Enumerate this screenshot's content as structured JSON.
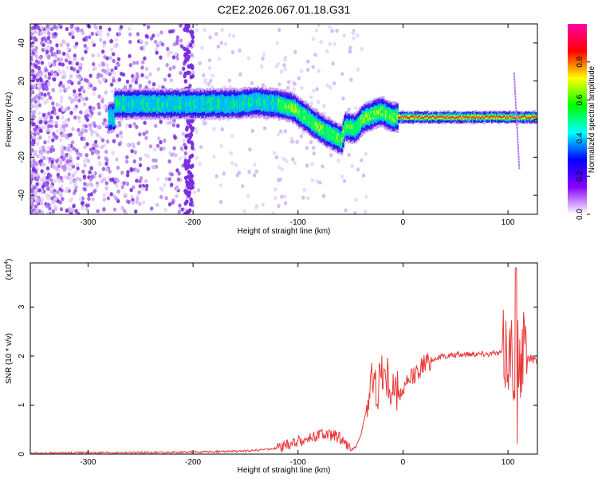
{
  "title": "C2E2.2026.067.01.18.G31",
  "colors": {
    "snr_line": "#e83a3a",
    "background": "#ffffff",
    "axis": "#000000"
  },
  "chart_data": [
    {
      "type": "heatmap",
      "xlabel": "Height of straight line (km)",
      "ylabel": "Frequency (Hz)",
      "xlim": [
        -355,
        128
      ],
      "ylim": [
        -50,
        50
      ],
      "xticks": [
        -300,
        -200,
        -100,
        0,
        100
      ],
      "yticks": [
        -40,
        -20,
        0,
        20,
        40
      ],
      "grid": false,
      "colorbar": {
        "label": "Normalized spectral amplitude",
        "range": [
          0,
          1
        ],
        "ticks": [
          "0.0",
          "0.2",
          "0.4",
          "0.6",
          "0.8"
        ],
        "colormap": [
          "#ffffff",
          "#8800ff",
          "#0000ff",
          "#00ffff",
          "#00ff00",
          "#ffff00",
          "#ff0000",
          "#ff00aa"
        ]
      },
      "signal_track": [
        [
          -275,
          8
        ],
        [
          -250,
          8
        ],
        [
          -220,
          8
        ],
        [
          -190,
          8
        ],
        [
          -160,
          8
        ],
        [
          -140,
          9
        ],
        [
          -120,
          8
        ],
        [
          -105,
          6
        ],
        [
          -95,
          2
        ],
        [
          -85,
          -2
        ],
        [
          -75,
          -6
        ],
        [
          -65,
          -9
        ],
        [
          -58,
          -11
        ],
        [
          -55,
          -4
        ],
        [
          -45,
          -5
        ],
        [
          -38,
          0
        ],
        [
          -30,
          2
        ],
        [
          -20,
          4
        ],
        [
          -10,
          1
        ],
        [
          0,
          1
        ],
        [
          20,
          1
        ],
        [
          50,
          1
        ],
        [
          80,
          1
        ],
        [
          100,
          1
        ],
        [
          110,
          1
        ],
        [
          128,
          1
        ]
      ]
    },
    {
      "type": "line",
      "xlabel": "Height of straight line (km)",
      "ylabel": "SNR (10 * v/v)",
      "yscale_label": "(x10",
      "yscale_exponent": "4",
      "yscale_suffix": ")",
      "xlim": [
        -355,
        128
      ],
      "ylim": [
        0,
        3.9
      ],
      "xticks": [
        -300,
        -200,
        -100,
        0,
        100
      ],
      "yticks": [
        0,
        1,
        2,
        3
      ],
      "grid": false,
      "series": [
        {
          "x": [
            -355,
            -300,
            -250,
            -200,
            -150,
            -120,
            -100,
            -90,
            -80,
            -70,
            -60,
            -55,
            -50,
            -45,
            -40,
            -35,
            -30,
            -25,
            -20,
            -15,
            -10,
            -5,
            0,
            10,
            20,
            30,
            40,
            50,
            60,
            70,
            80,
            90,
            95,
            100,
            105,
            108,
            110,
            112,
            115,
            120,
            128
          ],
          "y": [
            0.02,
            0.03,
            0.03,
            0.04,
            0.06,
            0.12,
            0.25,
            0.3,
            0.4,
            0.38,
            0.35,
            0.2,
            0.08,
            0.15,
            0.4,
            0.9,
            1.5,
            1.3,
            1.7,
            1.5,
            1.3,
            1.2,
            1.3,
            1.6,
            1.85,
            1.95,
            2.0,
            2.02,
            2.04,
            2.05,
            2.05,
            2.05,
            2.1,
            2.15,
            2.0,
            1.8,
            1.95,
            2.0,
            2.0,
            1.95,
            1.9
          ]
        }
      ]
    }
  ]
}
